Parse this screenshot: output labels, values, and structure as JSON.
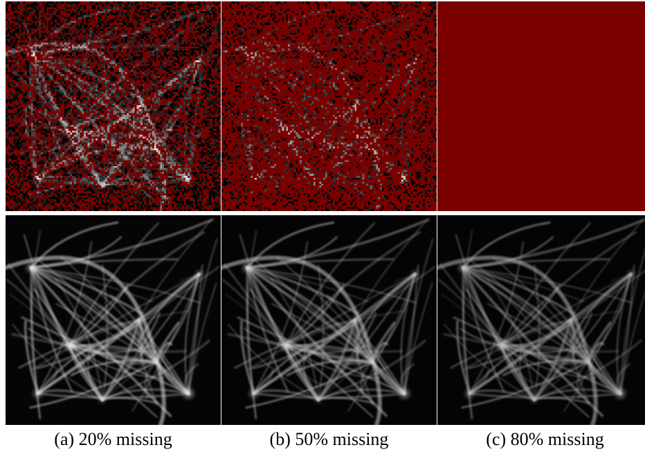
{
  "colors": {
    "missing_pixel": "#7a0000",
    "background": "#ffffff"
  },
  "panels": [
    {
      "missing_fraction": 0.2,
      "caption": "(a) 20% missing"
    },
    {
      "missing_fraction": 0.5,
      "caption": "(b) 50% missing"
    },
    {
      "missing_fraction": 0.8,
      "caption": "(c) 80% missing"
    }
  ]
}
